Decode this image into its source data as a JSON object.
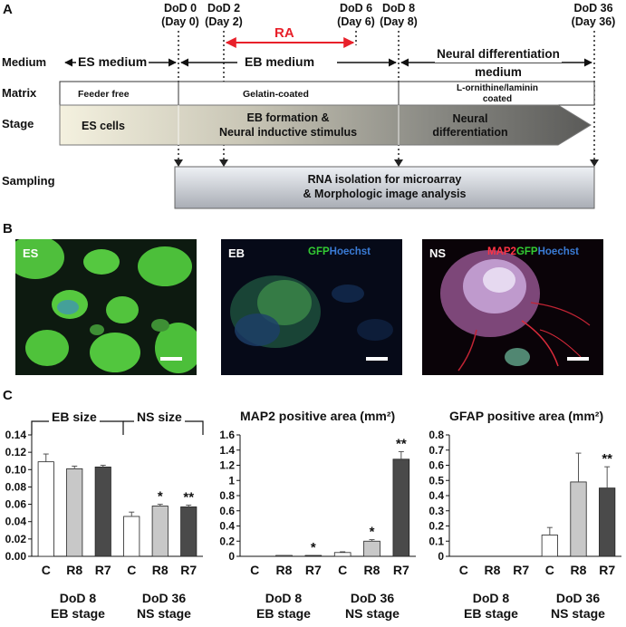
{
  "panel_a": {
    "letter": "A",
    "timepoints": [
      {
        "dod": "DoD 0",
        "day": "(Day 0)"
      },
      {
        "dod": "DoD 2",
        "day": "(Day 2)"
      },
      {
        "dod": "DoD 6",
        "day": "(Day 6)"
      },
      {
        "dod": "DoD 8",
        "day": "(Day 8)"
      },
      {
        "dod": "DoD 36",
        "day": "(Day 36)"
      }
    ],
    "ra_label": "RA",
    "row_labels": {
      "medium": "Medium",
      "matrix": "Matrix",
      "stage": "Stage",
      "sampling": "Sampling"
    },
    "media": {
      "es": "ES medium",
      "eb": "EB medium",
      "neural_line1": "Neural differentiation",
      "neural_line2": "medium"
    },
    "matrix": {
      "feeder": "Feeder free",
      "gelatin": "Gelatin-coated",
      "laminin_line1": "L-ornithine/laminin",
      "laminin_line2": "coated"
    },
    "stages": {
      "es": "ES cells",
      "eb_line1": "EB formation &",
      "eb_line2": "Neural inductive stimulus",
      "neural_line1": "Neural",
      "neural_line2": "differentiation"
    },
    "sampling": {
      "line1": "RNA isolation for microarray",
      "line2": "& Morphologic image analysis"
    }
  },
  "panel_b": {
    "letter": "B",
    "images": [
      {
        "label": "ES",
        "stains": []
      },
      {
        "label": "EB",
        "stains": [
          {
            "text": "GFP",
            "color": "#33cc33"
          },
          {
            "text": "Hoechst",
            "color": "#3a7bd5"
          }
        ]
      },
      {
        "label": "NS",
        "stains": [
          {
            "text": "MAP2",
            "color": "#ff3344"
          },
          {
            "text": "GFP",
            "color": "#33cc33"
          },
          {
            "text": "Hoechst",
            "color": "#3a7bd5"
          }
        ]
      }
    ]
  },
  "panel_c": {
    "letter": "C",
    "group_labels": {
      "dod8": "DoD 8",
      "eb_stage": "EB stage",
      "dod36": "DoD 36",
      "ns_stage": "NS stage"
    },
    "size_brackets": {
      "eb": "EB size",
      "ns": "NS size"
    },
    "bar_colors": {
      "C": "#ffffff",
      "R8": "#c8c8c8",
      "R7": "#4a4a4a"
    }
  },
  "chart_data": [
    {
      "type": "bar",
      "title": "",
      "categories": [
        "C",
        "R8",
        "R7",
        "C",
        "R8",
        "R7"
      ],
      "values": [
        0.109,
        0.101,
        0.103,
        0.046,
        0.058,
        0.057
      ],
      "errors": [
        0.009,
        0.003,
        0.002,
        0.005,
        0.002,
        0.002
      ],
      "significance": [
        "",
        "",
        "",
        "",
        "*",
        "**"
      ],
      "ylim": [
        0,
        0.14
      ],
      "yticks": [
        "0.00",
        "0.02",
        "0.04",
        "0.06",
        "0.08",
        "0.10",
        "0.12",
        "0.14"
      ],
      "ytick_values": [
        0,
        0.02,
        0.04,
        0.06,
        0.08,
        0.1,
        0.12,
        0.14
      ]
    },
    {
      "type": "bar",
      "title": "MAP2 positive area (mm²)",
      "categories": [
        "C",
        "R8",
        "R7",
        "C",
        "R8",
        "R7"
      ],
      "values": [
        0.0,
        0.01,
        0.01,
        0.05,
        0.2,
        1.28
      ],
      "errors": [
        0,
        0,
        0,
        0.01,
        0.02,
        0.1
      ],
      "significance": [
        "",
        "",
        "*",
        "",
        "*",
        "**"
      ],
      "ylim": [
        0,
        1.6
      ],
      "yticks": [
        "0",
        "0.2",
        "0.4",
        "0.6",
        "0.8",
        "1",
        "1.2",
        "1.4",
        "1.6"
      ],
      "ytick_values": [
        0,
        0.2,
        0.4,
        0.6,
        0.8,
        1,
        1.2,
        1.4,
        1.6
      ]
    },
    {
      "type": "bar",
      "title": "GFAP positive area (mm²)",
      "categories": [
        "C",
        "R8",
        "R7",
        "C",
        "R8",
        "R7"
      ],
      "values": [
        0,
        0,
        0,
        0.14,
        0.49,
        0.45
      ],
      "errors": [
        0,
        0,
        0,
        0.05,
        0.19,
        0.14
      ],
      "significance": [
        "",
        "",
        "",
        "",
        "",
        "**"
      ],
      "ylim": [
        0,
        0.8
      ],
      "yticks": [
        "0",
        "0.1",
        "0.2",
        "0.3",
        "0.4",
        "0.5",
        "0.6",
        "0.7",
        "0.8"
      ],
      "ytick_values": [
        0,
        0.1,
        0.2,
        0.3,
        0.4,
        0.5,
        0.6,
        0.7,
        0.8
      ]
    }
  ]
}
